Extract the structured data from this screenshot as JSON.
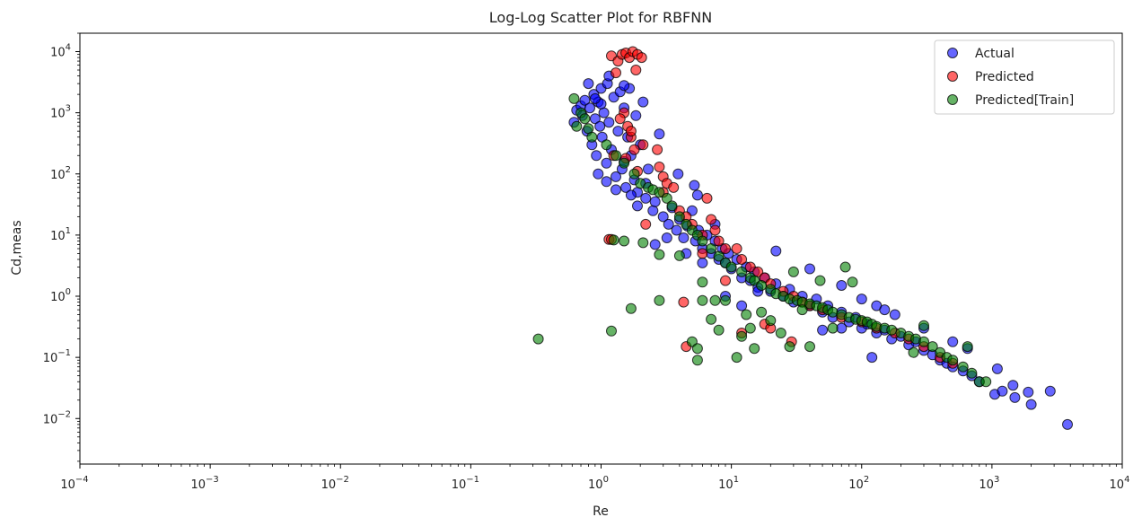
{
  "chart_data": {
    "type": "scatter",
    "title": "Log-Log Scatter Plot for RBFNN",
    "xlabel": "Re",
    "ylabel": "Cd,meas",
    "xscale": "log",
    "yscale": "log",
    "xlim": [
      0.0001,
      10000
    ],
    "ylim": [
      0.0018,
      20000
    ],
    "xticks": [
      {
        "base": "10",
        "exp": "−4",
        "value": 0.0001
      },
      {
        "base": "10",
        "exp": "−3",
        "value": 0.001
      },
      {
        "base": "10",
        "exp": "−2",
        "value": 0.01
      },
      {
        "base": "10",
        "exp": "−1",
        "value": 0.1
      },
      {
        "base": "10",
        "exp": "0",
        "value": 1
      },
      {
        "base": "10",
        "exp": "1",
        "value": 10
      },
      {
        "base": "10",
        "exp": "2",
        "value": 100
      },
      {
        "base": "10",
        "exp": "3",
        "value": 1000
      },
      {
        "base": "10",
        "exp": "4",
        "value": 10000
      }
    ],
    "yticks": [
      {
        "base": "10",
        "exp": "−2",
        "value": 0.01
      },
      {
        "base": "10",
        "exp": "−1",
        "value": 0.1
      },
      {
        "base": "10",
        "exp": "0",
        "value": 1
      },
      {
        "base": "10",
        "exp": "1",
        "value": 10
      },
      {
        "base": "10",
        "exp": "2",
        "value": 100
      },
      {
        "base": "10",
        "exp": "3",
        "value": 1000
      },
      {
        "base": "10",
        "exp": "4",
        "value": 10000
      }
    ],
    "grid": false,
    "legend_position": "top-right",
    "series": [
      {
        "name": "Actual",
        "color": "#0000ff",
        "points": [
          [
            0.62,
            700
          ],
          [
            0.65,
            1100
          ],
          [
            0.7,
            1300
          ],
          [
            0.72,
            900
          ],
          [
            0.75,
            1600
          ],
          [
            0.78,
            500
          ],
          [
            0.8,
            3000
          ],
          [
            0.82,
            1200
          ],
          [
            0.85,
            300
          ],
          [
            0.88,
            2000
          ],
          [
            0.9,
            800
          ],
          [
            0.92,
            200
          ],
          [
            0.95,
            1500
          ],
          [
            0.98,
            600
          ],
          [
            1.0,
            2500
          ],
          [
            1.02,
            400
          ],
          [
            1.05,
            1000
          ],
          [
            1.1,
            150
          ],
          [
            1.12,
            3000
          ],
          [
            1.15,
            700
          ],
          [
            1.2,
            250
          ],
          [
            1.25,
            1800
          ],
          [
            1.3,
            90
          ],
          [
            1.35,
            500
          ],
          [
            1.4,
            2200
          ],
          [
            1.45,
            120
          ],
          [
            1.5,
            1200
          ],
          [
            1.55,
            60
          ],
          [
            1.6,
            400
          ],
          [
            1.65,
            2500
          ],
          [
            1.7,
            200
          ],
          [
            1.8,
            80
          ],
          [
            1.85,
            900
          ],
          [
            1.9,
            50
          ],
          [
            2.0,
            300
          ],
          [
            2.1,
            1500
          ],
          [
            2.2,
            40
          ],
          [
            2.3,
            120
          ],
          [
            2.5,
            25
          ],
          [
            2.8,
            450
          ],
          [
            0.95,
            100
          ],
          [
            1.1,
            75
          ],
          [
            1.3,
            55
          ],
          [
            1.5,
            160
          ],
          [
            1.7,
            45
          ],
          [
            1.9,
            30
          ],
          [
            2.2,
            70
          ],
          [
            2.6,
            35
          ],
          [
            3.0,
            20
          ],
          [
            3.3,
            15
          ],
          [
            3.5,
            28
          ],
          [
            3.8,
            12
          ],
          [
            4.0,
            18
          ],
          [
            4.3,
            9
          ],
          [
            4.6,
            14
          ],
          [
            5.0,
            25
          ],
          [
            5.3,
            8
          ],
          [
            5.6,
            12
          ],
          [
            6.0,
            6
          ],
          [
            6.5,
            10
          ],
          [
            7.0,
            5
          ],
          [
            7.5,
            8
          ],
          [
            8.0,
            4
          ],
          [
            8.5,
            6
          ],
          [
            9.0,
            3.5
          ],
          [
            9.5,
            5
          ],
          [
            10,
            2.8
          ],
          [
            11,
            4
          ],
          [
            12,
            2
          ],
          [
            13,
            3
          ],
          [
            14,
            1.8
          ],
          [
            15,
            2.5
          ],
          [
            16,
            1.4
          ],
          [
            18,
            2
          ],
          [
            20,
            1.2
          ],
          [
            22,
            1.6
          ],
          [
            25,
            1
          ],
          [
            28,
            1.3
          ],
          [
            30,
            0.8
          ],
          [
            35,
            1
          ],
          [
            40,
            0.7
          ],
          [
            45,
            0.9
          ],
          [
            50,
            0.55
          ],
          [
            55,
            0.7
          ],
          [
            60,
            0.45
          ],
          [
            70,
            0.55
          ],
          [
            80,
            0.38
          ],
          [
            90,
            0.45
          ],
          [
            100,
            0.3
          ],
          [
            110,
            0.35
          ],
          [
            130,
            0.25
          ],
          [
            150,
            0.28
          ],
          [
            170,
            0.2
          ],
          [
            200,
            0.22
          ],
          [
            230,
            0.16
          ],
          [
            260,
            0.18
          ],
          [
            300,
            0.13
          ],
          [
            350,
            0.11
          ],
          [
            400,
            0.09
          ],
          [
            450,
            0.08
          ],
          [
            500,
            0.07
          ],
          [
            600,
            0.06
          ],
          [
            700,
            0.05
          ],
          [
            800,
            0.04
          ],
          [
            1050,
            0.025
          ],
          [
            1100,
            0.065
          ],
          [
            1200,
            0.028
          ],
          [
            1450,
            0.035
          ],
          [
            1500,
            0.022
          ],
          [
            1900,
            0.027
          ],
          [
            2000,
            0.017
          ],
          [
            2800,
            0.028
          ],
          [
            3800,
            0.008
          ],
          [
            1.15,
            4000
          ],
          [
            1.5,
            2800
          ],
          [
            1.0,
            1400
          ],
          [
            0.9,
            1700
          ],
          [
            3.9,
            100
          ],
          [
            5.2,
            65
          ],
          [
            5.5,
            45
          ],
          [
            7.5,
            15
          ],
          [
            22,
            5.5
          ],
          [
            40,
            2.8
          ],
          [
            70,
            1.5
          ],
          [
            100,
            0.9
          ],
          [
            130,
            0.7
          ],
          [
            180,
            0.5
          ],
          [
            300,
            0.3
          ],
          [
            150,
            0.6
          ],
          [
            70,
            0.3
          ],
          [
            50,
            0.28
          ],
          [
            120,
            0.1
          ],
          [
            500,
            0.18
          ],
          [
            650,
            0.14
          ],
          [
            9,
            1
          ],
          [
            12,
            0.7
          ],
          [
            3.2,
            9
          ],
          [
            2.6,
            7
          ],
          [
            4.5,
            5
          ],
          [
            6,
            3.5
          ],
          [
            16,
            1.2
          ]
        ]
      },
      {
        "name": "Predicted",
        "color": "#ff0000",
        "points": [
          [
            1.2,
            8500
          ],
          [
            1.35,
            7000
          ],
          [
            1.45,
            9000
          ],
          [
            1.55,
            9500
          ],
          [
            1.65,
            8000
          ],
          [
            1.75,
            10000
          ],
          [
            1.85,
            5000
          ],
          [
            1.9,
            9000
          ],
          [
            2.05,
            8000
          ],
          [
            1.3,
            4500
          ],
          [
            1.5,
            1000
          ],
          [
            1.6,
            600
          ],
          [
            1.7,
            400
          ],
          [
            1.8,
            250
          ],
          [
            1.55,
            180
          ],
          [
            1.9,
            110
          ],
          [
            1.7,
            500
          ],
          [
            2.1,
            300
          ],
          [
            1.4,
            800
          ],
          [
            1.25,
            200
          ],
          [
            2.7,
            250
          ],
          [
            2.8,
            130
          ],
          [
            3.0,
            90
          ],
          [
            3.2,
            70
          ],
          [
            3.6,
            60
          ],
          [
            3.0,
            50
          ],
          [
            4.0,
            25
          ],
          [
            4.5,
            20
          ],
          [
            5.0,
            15
          ],
          [
            6.0,
            10
          ],
          [
            6.5,
            40
          ],
          [
            7.0,
            18
          ],
          [
            7.5,
            12
          ],
          [
            8.0,
            8
          ],
          [
            9.0,
            6
          ],
          [
            11,
            6
          ],
          [
            12,
            4
          ],
          [
            14,
            3
          ],
          [
            16,
            2.5
          ],
          [
            18,
            2
          ],
          [
            20,
            1.6
          ],
          [
            25,
            1.2
          ],
          [
            30,
            1
          ],
          [
            35,
            0.8
          ],
          [
            40,
            0.7
          ],
          [
            50,
            0.6
          ],
          [
            70,
            0.45
          ],
          [
            100,
            0.38
          ],
          [
            130,
            0.3
          ],
          [
            180,
            0.25
          ],
          [
            230,
            0.2
          ],
          [
            300,
            0.15
          ],
          [
            400,
            0.1
          ],
          [
            500,
            0.08
          ],
          [
            1.15,
            8.5
          ],
          [
            1.2,
            8.5
          ],
          [
            4.3,
            0.8
          ],
          [
            4.5,
            0.15
          ],
          [
            12,
            0.25
          ],
          [
            29,
            0.18
          ],
          [
            18,
            0.35
          ],
          [
            20,
            0.3
          ],
          [
            9,
            1.8
          ],
          [
            6,
            5
          ],
          [
            2.2,
            15
          ]
        ]
      },
      {
        "name": "Predicted[Train]",
        "color": "#008000",
        "points": [
          [
            0.62,
            1700
          ],
          [
            0.65,
            600
          ],
          [
            0.7,
            1000
          ],
          [
            0.75,
            800
          ],
          [
            0.8,
            550
          ],
          [
            0.85,
            400
          ],
          [
            1.1,
            300
          ],
          [
            1.3,
            200
          ],
          [
            1.5,
            150
          ],
          [
            1.8,
            100
          ],
          [
            2.0,
            70
          ],
          [
            2.3,
            60
          ],
          [
            2.5,
            55
          ],
          [
            2.8,
            50
          ],
          [
            3.2,
            40
          ],
          [
            3.5,
            30
          ],
          [
            4.0,
            20
          ],
          [
            4.5,
            15
          ],
          [
            5.0,
            12
          ],
          [
            5.5,
            10
          ],
          [
            6.0,
            8
          ],
          [
            7.0,
            6
          ],
          [
            8.0,
            4.5
          ],
          [
            9.0,
            3.5
          ],
          [
            10,
            3
          ],
          [
            12,
            2.5
          ],
          [
            14,
            2
          ],
          [
            15,
            1.8
          ],
          [
            17,
            1.5
          ],
          [
            20,
            1.3
          ],
          [
            22,
            1.1
          ],
          [
            25,
            1
          ],
          [
            28,
            0.9
          ],
          [
            30,
            2.5
          ],
          [
            32,
            0.85
          ],
          [
            35,
            0.8
          ],
          [
            40,
            0.75
          ],
          [
            45,
            0.7
          ],
          [
            50,
            0.65
          ],
          [
            55,
            0.6
          ],
          [
            60,
            0.55
          ],
          [
            70,
            0.5
          ],
          [
            80,
            0.45
          ],
          [
            90,
            0.42
          ],
          [
            100,
            0.4
          ],
          [
            110,
            0.38
          ],
          [
            120,
            0.35
          ],
          [
            130,
            0.32
          ],
          [
            150,
            0.3
          ],
          [
            170,
            0.28
          ],
          [
            200,
            0.25
          ],
          [
            230,
            0.22
          ],
          [
            260,
            0.2
          ],
          [
            300,
            0.18
          ],
          [
            350,
            0.15
          ],
          [
            400,
            0.12
          ],
          [
            450,
            0.1
          ],
          [
            500,
            0.09
          ],
          [
            600,
            0.07
          ],
          [
            700,
            0.055
          ],
          [
            800,
            0.04
          ],
          [
            0.33,
            0.2
          ],
          [
            1.2,
            0.27
          ],
          [
            1.25,
            8.3
          ],
          [
            1.5,
            8.0
          ],
          [
            1.7,
            0.63
          ],
          [
            2.1,
            7.5
          ],
          [
            2.8,
            4.8
          ],
          [
            2.8,
            0.85
          ],
          [
            4.0,
            4.6
          ],
          [
            5.0,
            0.18
          ],
          [
            5.5,
            0.09
          ],
          [
            5.5,
            0.14
          ],
          [
            6.0,
            1.7
          ],
          [
            6.0,
            0.85
          ],
          [
            7.0,
            0.42
          ],
          [
            7.5,
            0.85
          ],
          [
            8.0,
            0.28
          ],
          [
            9.0,
            0.85
          ],
          [
            11,
            0.1
          ],
          [
            12,
            0.22
          ],
          [
            13,
            0.5
          ],
          [
            14,
            0.3
          ],
          [
            15,
            0.14
          ],
          [
            17,
            0.55
          ],
          [
            20,
            0.4
          ],
          [
            24,
            0.25
          ],
          [
            28,
            0.15
          ],
          [
            35,
            0.6
          ],
          [
            40,
            0.15
          ],
          [
            48,
            1.8
          ],
          [
            60,
            0.3
          ],
          [
            75,
            3
          ],
          [
            85,
            1.7
          ],
          [
            300,
            0.33
          ],
          [
            650,
            0.15
          ],
          [
            250,
            0.12
          ],
          [
            900,
            0.04
          ]
        ]
      }
    ]
  }
}
